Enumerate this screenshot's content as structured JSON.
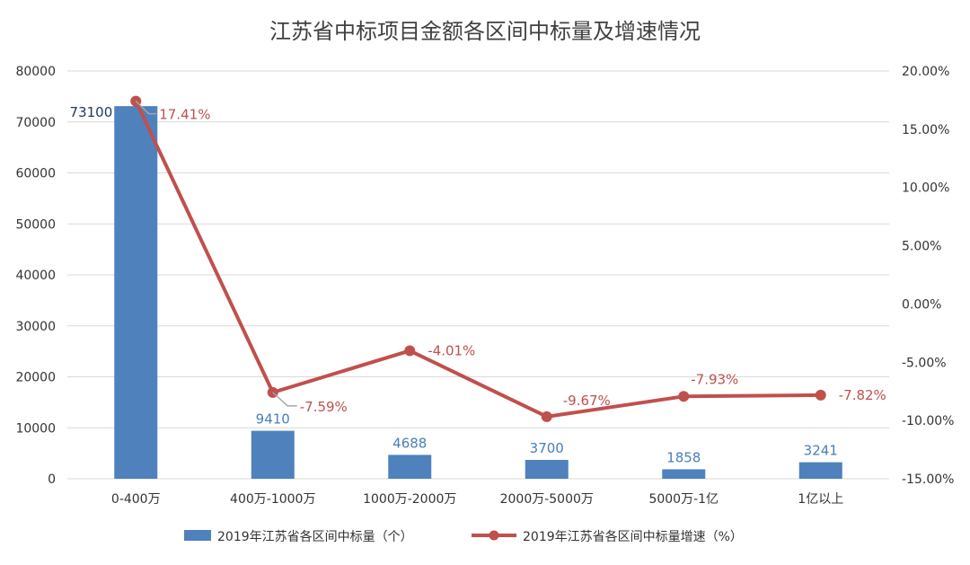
{
  "chart_data": {
    "type": "bar",
    "title": "江苏省中标项目金额各区间中标量及增速情况",
    "categories": [
      "0-400万",
      "400万-1000万",
      "1000万-2000万",
      "2000万-5000万",
      "5000万-1亿",
      "1亿以上"
    ],
    "series": [
      {
        "name": "2019年江苏省各区间中标量（个）",
        "type": "bar",
        "axis": "left",
        "color": "#4f81bd",
        "values": [
          73100,
          9410,
          4688,
          3700,
          1858,
          3241
        ],
        "labels": [
          "73100",
          "9410",
          "4688",
          "3700",
          "1858",
          "3241"
        ]
      },
      {
        "name": "2019年江苏省各区间中标量增速（%）",
        "type": "line",
        "axis": "right",
        "color": "#c0504d",
        "values": [
          17.41,
          -7.59,
          -4.01,
          -9.67,
          -7.93,
          -7.82
        ],
        "labels": [
          "17.41%",
          "-7.59%",
          "-4.01%",
          "-9.67%",
          "-7.93%",
          "-7.82%"
        ]
      }
    ],
    "left_axis": {
      "ylim": [
        0,
        80000
      ],
      "ticks": [
        "0",
        "10000",
        "20000",
        "30000",
        "40000",
        "50000",
        "60000",
        "70000",
        "80000"
      ]
    },
    "right_axis": {
      "ylim": [
        -15,
        20
      ],
      "ticks": [
        "-15.00%",
        "-10.00%",
        "-5.00%",
        "0.00%",
        "5.00%",
        "10.00%",
        "15.00%",
        "20.00%"
      ]
    },
    "grid": true,
    "legend_position": "bottom"
  }
}
